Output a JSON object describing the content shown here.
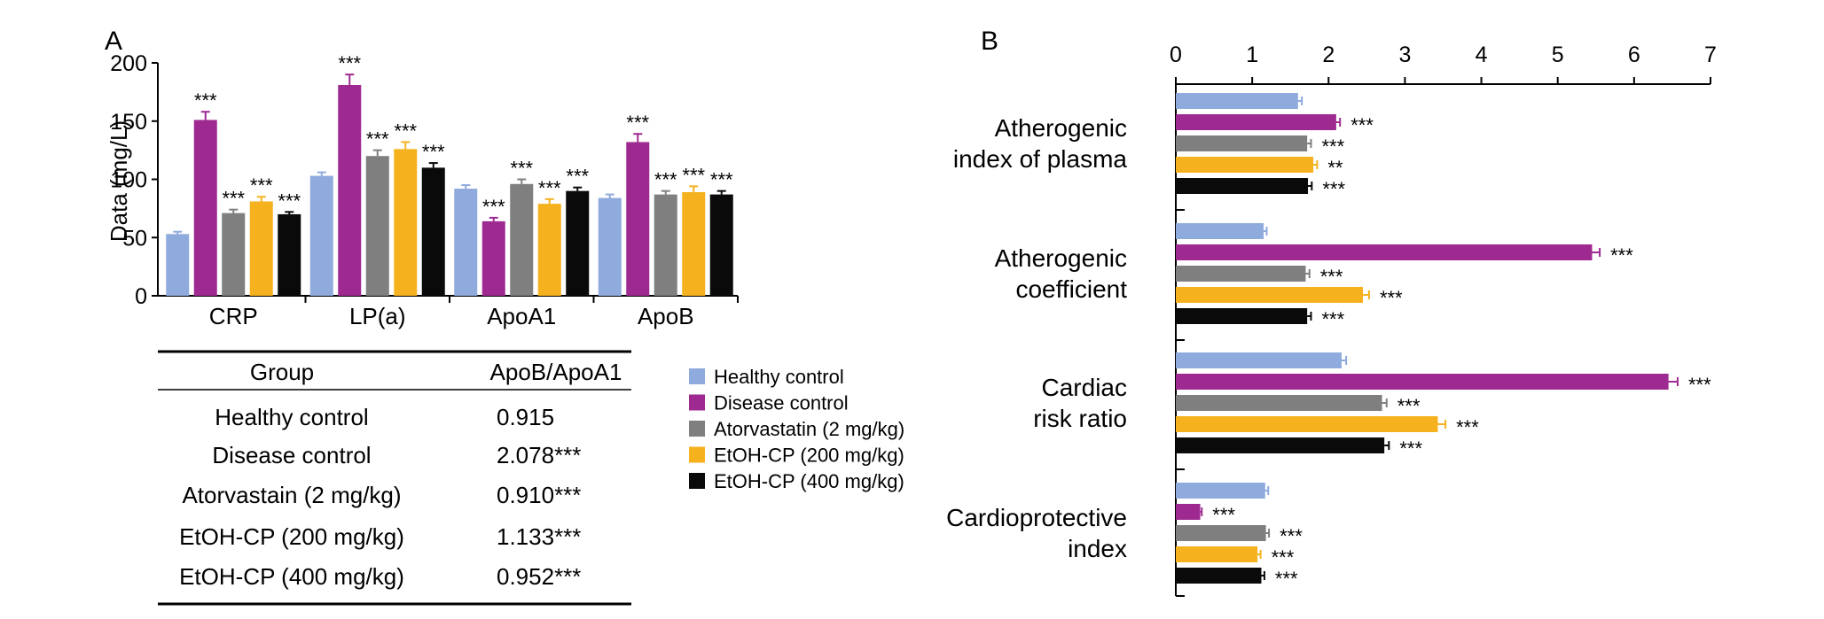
{
  "panel_labels": {
    "a": "A",
    "b": "B"
  },
  "colors": {
    "Healthy control": "#8faadc",
    "Disease control": "#9e2a91",
    "Atorvastatin (2 mg/kg)": "#7f7f7f",
    "EtOH-CP (200 mg/kg)": "#f5b21e",
    "EtOH-CP (400 mg/kg)": "#0a0a0a",
    "axis": "#000000"
  },
  "legend": {
    "entries": [
      "Healthy control",
      "Disease control",
      "Atorvastatin (2 mg/kg)",
      "EtOH-CP (200 mg/kg)",
      "EtOH-CP (400 mg/kg)"
    ]
  },
  "table": {
    "headers": [
      "Group",
      "ApoB/ApoA1"
    ],
    "rows": [
      [
        "Healthy control",
        "0.915"
      ],
      [
        "Disease control",
        "2.078***"
      ],
      [
        "Atorvastain (2 mg/kg)",
        "0.910***"
      ],
      [
        "EtOH-CP (200 mg/kg)",
        "1.133***"
      ],
      [
        "EtOH-CP (400 mg/kg)",
        "0.952***"
      ]
    ]
  },
  "chart_data": [
    {
      "panel": "A",
      "type": "bar",
      "orientation": "vertical",
      "title": "",
      "ylabel": "Data (mg/L)",
      "xlabel": "",
      "ylim": [
        0,
        200
      ],
      "yticks": [
        0,
        50,
        100,
        150,
        200
      ],
      "grid": false,
      "categories": [
        "CRP",
        "LP(a)",
        "ApoA1",
        "ApoB"
      ],
      "series": [
        {
          "name": "Healthy control",
          "values": [
            53,
            103,
            92,
            84
          ],
          "errors": [
            2,
            3,
            3,
            3
          ],
          "sig": [
            "",
            "",
            "",
            ""
          ]
        },
        {
          "name": "Disease control",
          "values": [
            151,
            181,
            64,
            132
          ],
          "errors": [
            7,
            9,
            3,
            7
          ],
          "sig": [
            "***",
            "***",
            "***",
            "***"
          ]
        },
        {
          "name": "Atorvastatin (2 mg/kg)",
          "values": [
            71,
            120,
            96,
            87
          ],
          "errors": [
            3,
            5,
            4,
            3
          ],
          "sig": [
            "***",
            "***",
            "***",
            "***"
          ]
        },
        {
          "name": "EtOH-CP (200 mg/kg)",
          "values": [
            81,
            126,
            79,
            89
          ],
          "errors": [
            4,
            6,
            4,
            5
          ],
          "sig": [
            "***",
            "***",
            "***",
            "***"
          ]
        },
        {
          "name": "EtOH-CP (400 mg/kg)",
          "values": [
            70,
            110,
            90,
            87
          ],
          "errors": [
            2,
            4,
            3,
            3
          ],
          "sig": [
            "***",
            "***",
            "***",
            "***"
          ]
        }
      ]
    },
    {
      "panel": "B",
      "type": "bar",
      "orientation": "horizontal",
      "title": "",
      "xlabel": "",
      "ylabel": "",
      "xlim": [
        0,
        7
      ],
      "xticks": [
        0,
        1,
        2,
        3,
        4,
        5,
        6,
        7
      ],
      "x_axis_position": "top",
      "grid": false,
      "categories": [
        [
          "Atherogenic",
          "index of plasma"
        ],
        [
          "Atherogenic",
          "coefficient"
        ],
        [
          "Cardiac",
          "risk ratio"
        ],
        [
          "Cardioprotective",
          "index"
        ]
      ],
      "series": [
        {
          "name": "Healthy control",
          "values": [
            1.6,
            1.15,
            2.17,
            1.17
          ],
          "errors": [
            0.05,
            0.04,
            0.06,
            0.04
          ],
          "sig": [
            "",
            "",
            "",
            ""
          ]
        },
        {
          "name": "Disease control",
          "values": [
            2.1,
            5.45,
            6.45,
            0.32
          ],
          "errors": [
            0.05,
            0.1,
            0.12,
            0.02
          ],
          "sig": [
            "***",
            "***",
            "***",
            "***"
          ]
        },
        {
          "name": "Atorvastatin (2 mg/kg)",
          "values": [
            1.72,
            1.7,
            2.7,
            1.18
          ],
          "errors": [
            0.05,
            0.05,
            0.06,
            0.04
          ],
          "sig": [
            "***",
            "***",
            "***",
            "***"
          ]
        },
        {
          "name": "EtOH-CP (200 mg/kg)",
          "values": [
            1.8,
            2.45,
            3.43,
            1.07
          ],
          "errors": [
            0.05,
            0.08,
            0.1,
            0.04
          ],
          "sig": [
            "**",
            "***",
            "***",
            "***"
          ]
        },
        {
          "name": "EtOH-CP (400 mg/kg)",
          "values": [
            1.73,
            1.72,
            2.73,
            1.12
          ],
          "errors": [
            0.05,
            0.05,
            0.06,
            0.04
          ],
          "sig": [
            "***",
            "***",
            "***",
            "***"
          ]
        }
      ]
    }
  ]
}
